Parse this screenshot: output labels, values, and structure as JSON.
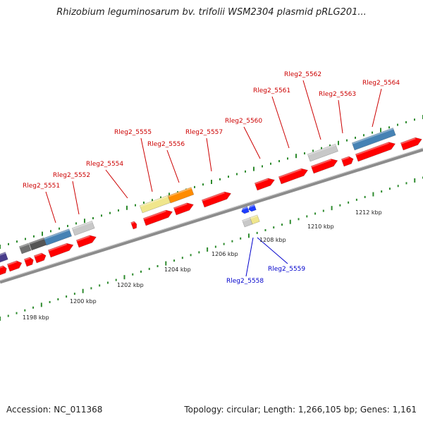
{
  "title": "Rhizobium leguminosarum bv. trifolii WSM2304 plasmid pRLG201...",
  "footer": {
    "accession": "Accession: NC_011368",
    "summary": "Topology: circular; Length: 1,266,105 bp; Genes: 1,161"
  },
  "colors": {
    "gene_red": "#ff0000",
    "forward_label": "#cc0000",
    "reverse_label": "#0000cc",
    "backbone": "#8c8c8c",
    "ruler_dots": "#2e8b2e",
    "steel_blue": "#4682b4",
    "light_gray": "#c8c8c8",
    "khaki": "#f0e68c",
    "orange": "#ff8c00",
    "dark_gray": "#707070",
    "purple": "#483d8b",
    "blue": "#1e3cff"
  },
  "ruler_labels": [
    "1198 kbp",
    "1200 kbp",
    "1202 kbp",
    "1204 kbp",
    "1206 kbp",
    "1208 kbp",
    "1210 kbp",
    "1212 kbp"
  ],
  "forward_gene_labels": [
    "Rleg2_5551",
    "Rleg2_5552",
    "Rleg2_5554",
    "Rleg2_5555",
    "Rleg2_5556",
    "Rleg2_5557",
    "Rleg2_5560",
    "Rleg2_5561",
    "Rleg2_5562",
    "Rleg2_5563",
    "Rleg2_5564"
  ],
  "reverse_gene_labels": [
    "Rleg2_5558",
    "Rleg2_5559"
  ]
}
